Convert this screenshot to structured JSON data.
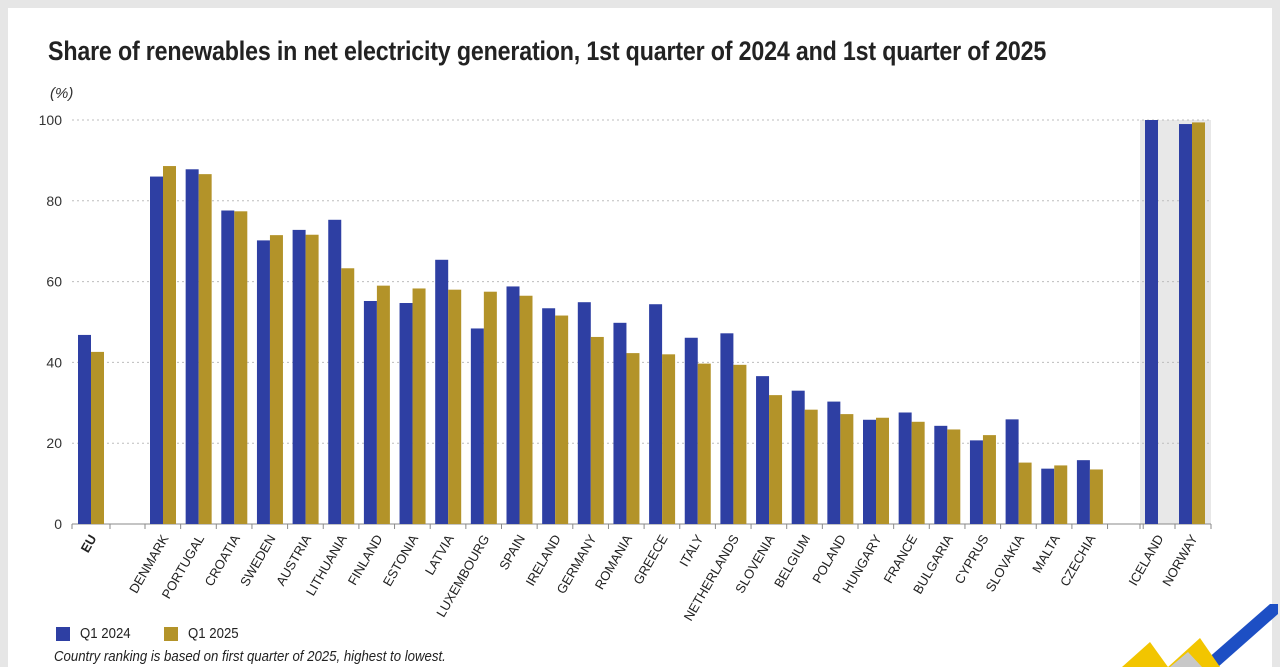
{
  "title": "Share of renewables in net electricity generation, 1st quarter of 2024 and 1st quarter of 2025",
  "unit": "(%)",
  "footnote": "Country ranking is based on first quarter of 2025, highest to lowest.",
  "legend": [
    {
      "label": "Q1 2024",
      "color": "#2e3fa3"
    },
    {
      "label": "Q1 2025",
      "color": "#b39329"
    }
  ],
  "chart_data": {
    "type": "bar",
    "title": "Share of renewables in net electricity generation, 1st quarter of 2024 and 1st quarter of 2025",
    "xlabel": "",
    "ylabel": "(%)",
    "ylim": [
      0,
      100
    ],
    "yticks": [
      0,
      20,
      40,
      60,
      80,
      100
    ],
    "grid": true,
    "categories": [
      "EU",
      "DENMARK",
      "PORTUGAL",
      "CROATIA",
      "SWEDEN",
      "AUSTRIA",
      "LITHUANIA",
      "FINLAND",
      "ESTONIA",
      "LATVIA",
      "LUXEMBOURG",
      "SPAIN",
      "IRELAND",
      "GERMANY",
      "ROMANIA",
      "GREECE",
      "ITALY",
      "NETHERLANDS",
      "SLOVENIA",
      "BELGIUM",
      "POLAND",
      "HUNGARY",
      "FRANCE",
      "BULGARIA",
      "CYPRUS",
      "SLOVAKIA",
      "MALTA",
      "CZECHIA",
      "ICELAND",
      "NORWAY"
    ],
    "groups": {
      "aggregate": [
        "EU"
      ],
      "highlighted_non_eu": [
        "ICELAND",
        "NORWAY"
      ]
    },
    "series": [
      {
        "name": "Q1 2024",
        "color": "#2e3fa3",
        "values": [
          46.8,
          86.0,
          87.8,
          77.6,
          70.2,
          72.8,
          75.3,
          55.2,
          54.7,
          65.4,
          48.4,
          58.8,
          53.4,
          54.9,
          49.8,
          54.4,
          46.1,
          47.2,
          36.6,
          33.0,
          30.3,
          25.8,
          27.6,
          24.3,
          20.7,
          25.9,
          13.7,
          15.8,
          100.0,
          99.0
        ]
      },
      {
        "name": "Q1 2025",
        "color": "#b39329",
        "values": [
          42.6,
          88.6,
          86.6,
          77.4,
          71.5,
          71.6,
          63.3,
          59.0,
          58.3,
          58.0,
          57.5,
          56.5,
          51.6,
          46.3,
          42.3,
          42.0,
          39.7,
          39.4,
          31.9,
          28.3,
          27.2,
          26.3,
          25.3,
          23.4,
          22.0,
          15.2,
          14.5,
          13.5,
          null,
          99.4
        ]
      }
    ]
  }
}
